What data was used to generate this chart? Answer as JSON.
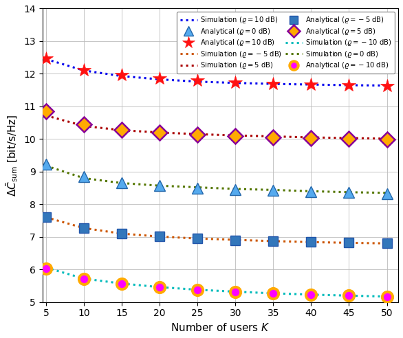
{
  "K": [
    5,
    10,
    15,
    20,
    25,
    30,
    35,
    40,
    45,
    50
  ],
  "sim_10dB": [
    12.45,
    12.1,
    11.93,
    11.83,
    11.76,
    11.72,
    11.69,
    11.67,
    11.65,
    11.64
  ],
  "ana_10dB": [
    12.48,
    12.12,
    11.96,
    11.86,
    11.79,
    11.74,
    11.7,
    11.67,
    11.65,
    11.63
  ],
  "sim_5dB": [
    10.72,
    10.4,
    10.27,
    10.2,
    10.15,
    10.11,
    10.08,
    10.05,
    10.03,
    10.01
  ],
  "ana_5dB": [
    10.85,
    10.46,
    10.28,
    10.2,
    10.13,
    10.09,
    10.05,
    10.02,
    10.0,
    9.98
  ],
  "sim_0dB": [
    9.18,
    8.8,
    8.65,
    8.57,
    8.52,
    8.47,
    8.44,
    8.4,
    8.37,
    8.35
  ],
  "ana_0dB": [
    9.22,
    8.85,
    8.67,
    8.57,
    8.5,
    8.45,
    8.42,
    8.38,
    8.36,
    8.33
  ],
  "sim_m5dB": [
    7.6,
    7.27,
    7.1,
    7.01,
    6.95,
    6.91,
    6.87,
    6.84,
    6.82,
    6.8
  ],
  "ana_m5dB": [
    7.6,
    7.28,
    7.11,
    7.01,
    6.95,
    6.9,
    6.87,
    6.84,
    6.82,
    6.8
  ],
  "sim_m10dB": [
    6.06,
    5.72,
    5.57,
    5.46,
    5.38,
    5.32,
    5.27,
    5.23,
    5.2,
    5.17
  ],
  "ana_m10dB": [
    6.03,
    5.71,
    5.56,
    5.46,
    5.38,
    5.32,
    5.27,
    5.23,
    5.2,
    5.17
  ],
  "xlabel": "Number of users $K$",
  "ylabel": "$\\Delta\\bar{C}_{\\mathrm{sum}}$ [bit/s/Hz]",
  "ylim": [
    5.0,
    14.0
  ],
  "yticks": [
    5,
    6,
    7,
    8,
    9,
    10,
    11,
    12,
    13,
    14
  ],
  "xticks": [
    5,
    10,
    15,
    20,
    25,
    30,
    35,
    40,
    45,
    50
  ],
  "color_sim_10dB": "#0000ee",
  "color_sim_5dB": "#aa0000",
  "color_sim_0dB": "#557700",
  "color_sim_m5dB": "#cc5500",
  "color_sim_m10dB": "#00bbbb",
  "mfc_10dB": "#ff1111",
  "mec_10dB": "#ff1111",
  "mfc_5dB": "#ffaa00",
  "mec_5dB": "#880099",
  "mfc_0dB": "#55aaee",
  "mec_0dB": "#2266aa",
  "mfc_m5dB": "#3377bb",
  "mec_m5dB": "#2255aa",
  "mfc_m10dB": "#ff00ff",
  "mec_m10dB": "#ffaa00"
}
